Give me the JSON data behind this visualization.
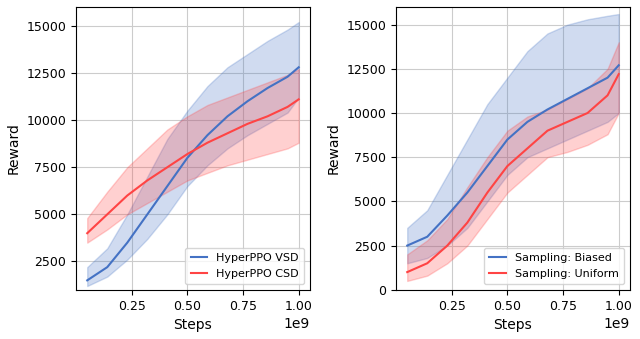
{
  "left_plot": {
    "title": "",
    "xlabel": "Steps",
    "ylabel": "Reward",
    "xlim": [
      0.0,
      1050000000.0
    ],
    "ylim": [
      1000,
      16000
    ],
    "yticks": [
      2500,
      5000,
      7500,
      10000,
      12500,
      15000
    ],
    "xticks": [
      250000000.0,
      500000000.0,
      750000000.0,
      1000000000.0
    ],
    "blue_mean": [
      1500,
      2200,
      3500,
      5000,
      6500,
      8000,
      9200,
      10200,
      11000,
      11700,
      12300,
      12800
    ],
    "blue_low": [
      1200,
      1700,
      2600,
      3700,
      5000,
      6500,
      7600,
      8500,
      9200,
      9800,
      10400,
      11200
    ],
    "blue_high": [
      2200,
      3200,
      5000,
      7000,
      9000,
      10500,
      11800,
      12800,
      13500,
      14200,
      14800,
      15200
    ],
    "red_mean": [
      4000,
      5000,
      6000,
      6800,
      7500,
      8200,
      8800,
      9300,
      9800,
      10200,
      10700,
      11100
    ],
    "red_low": [
      3500,
      4200,
      5000,
      5600,
      6200,
      6800,
      7200,
      7600,
      7900,
      8200,
      8500,
      8800
    ],
    "red_high": [
      4800,
      6200,
      7500,
      8500,
      9500,
      10200,
      10800,
      11200,
      11600,
      12000,
      12400,
      12700
    ],
    "x_steps": [
      50000000.0,
      140000000.0,
      230000000.0,
      320000000.0,
      410000000.0,
      500000000.0,
      590000000.0,
      680000000.0,
      770000000.0,
      860000000.0,
      950000000.0,
      1000000000.0
    ],
    "blue_label": "HyperPPO VSD",
    "red_label": "HyperPPO CSD",
    "blue_color": "#4472C4",
    "red_color": "#FF4444",
    "blue_fill_alpha": 0.25,
    "red_fill_alpha": 0.25
  },
  "right_plot": {
    "title": "",
    "xlabel": "Steps",
    "ylabel": "Reward",
    "xlim": [
      0.0,
      1050000000.0
    ],
    "ylim": [
      0,
      16000
    ],
    "yticks": [
      0,
      2500,
      5000,
      7500,
      10000,
      12500,
      15000
    ],
    "xticks": [
      250000000.0,
      500000000.0,
      750000000.0,
      1000000000.0
    ],
    "blue_mean": [
      2500,
      3000,
      4200,
      5500,
      7000,
      8500,
      9500,
      10200,
      10800,
      11400,
      12000,
      12700
    ],
    "blue_low": [
      1500,
      1800,
      2500,
      3500,
      5000,
      6500,
      7500,
      8000,
      8500,
      9000,
      9500,
      10000
    ],
    "blue_high": [
      3500,
      4500,
      6500,
      8500,
      10500,
      12000,
      13500,
      14500,
      15000,
      15300,
      15500,
      15600
    ],
    "red_mean": [
      1000,
      1500,
      2500,
      3800,
      5500,
      7000,
      8000,
      9000,
      9500,
      10000,
      11000,
      12200
    ],
    "red_low": [
      500,
      800,
      1500,
      2500,
      4000,
      5500,
      6500,
      7500,
      7800,
      8200,
      8800,
      10000
    ],
    "red_high": [
      2000,
      2800,
      4000,
      5800,
      7500,
      9000,
      9800,
      10200,
      10800,
      11400,
      12500,
      14000
    ],
    "x_steps": [
      50000000.0,
      140000000.0,
      230000000.0,
      320000000.0,
      410000000.0,
      500000000.0,
      590000000.0,
      680000000.0,
      770000000.0,
      860000000.0,
      950000000.0,
      1000000000.0
    ],
    "blue_label": "Sampling: Biased",
    "red_label": "Sampling: Uniform",
    "blue_color": "#4472C4",
    "red_color": "#FF4444",
    "blue_fill_alpha": 0.25,
    "red_fill_alpha": 0.25
  },
  "figsize": [
    6.4,
    3.39
  ],
  "dpi": 100,
  "bg_color": "#FFFFFF",
  "grid_color": "#CCCCCC",
  "spine_color": "#000000"
}
